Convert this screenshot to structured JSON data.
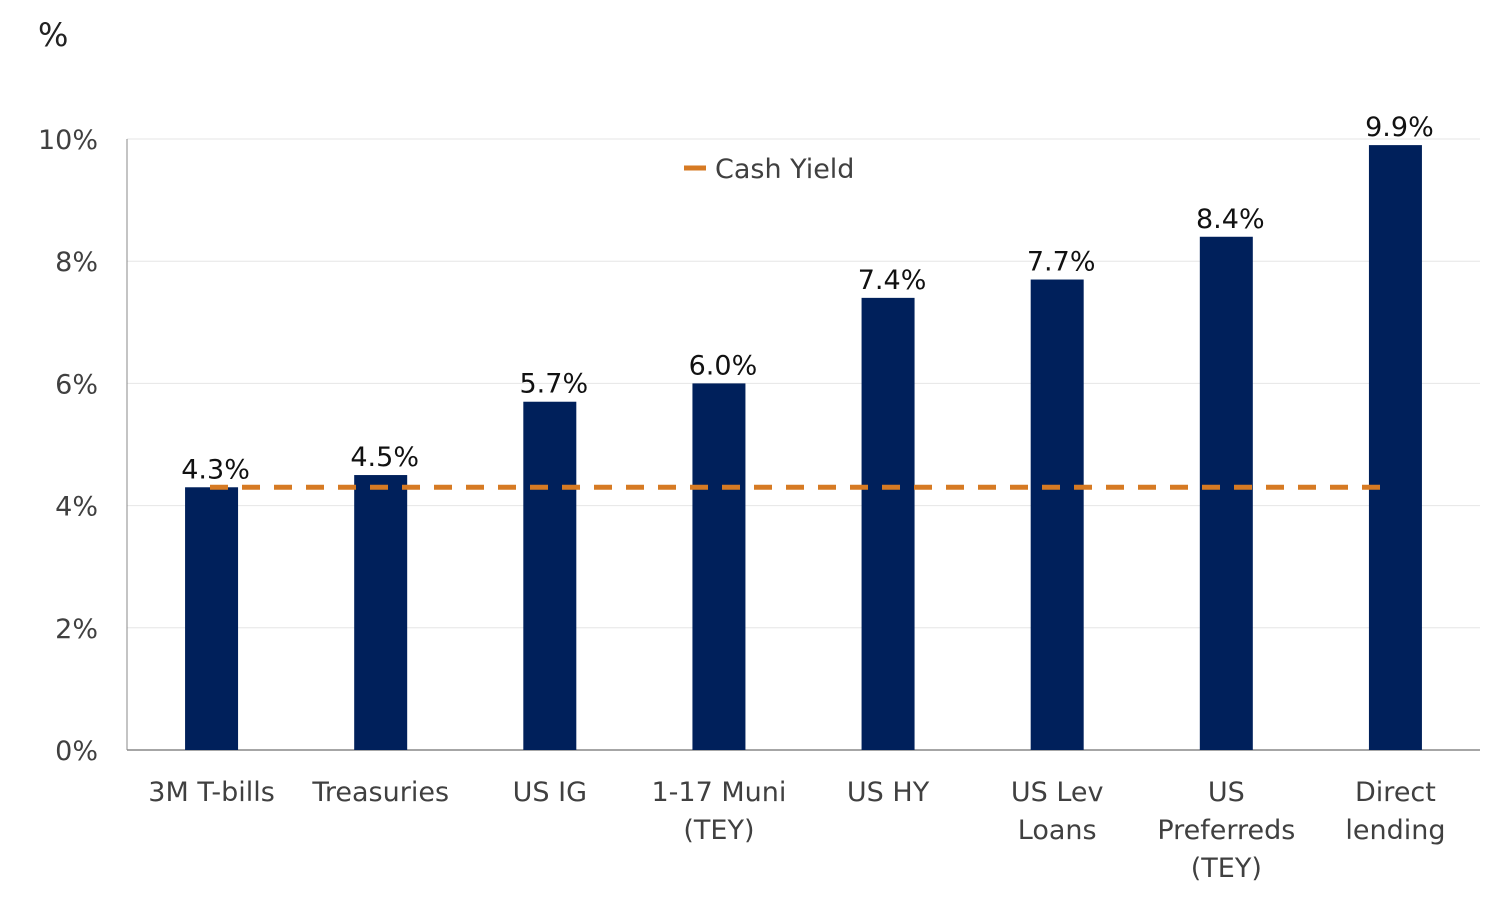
{
  "chart_data": {
    "type": "bar",
    "unit_label": "%",
    "categories": [
      [
        "3M T-bills"
      ],
      [
        "Treasuries"
      ],
      [
        "US IG"
      ],
      [
        "1-17 Muni",
        "(TEY)"
      ],
      [
        "US HY"
      ],
      [
        "US Lev",
        "Loans"
      ],
      [
        "US",
        "Preferreds",
        "(TEY)"
      ],
      [
        "Direct",
        "lending"
      ]
    ],
    "values": [
      4.3,
      4.5,
      5.7,
      6.0,
      7.4,
      7.7,
      8.4,
      9.9
    ],
    "data_labels": [
      "4.3%",
      "4.5%",
      "5.7%",
      "6.0%",
      "7.4%",
      "7.7%",
      "8.4%",
      "9.9%"
    ],
    "reference_line": {
      "name": "Cash Yield",
      "value": 4.3,
      "style": "dashed"
    },
    "legend": {
      "entries": [
        "Cash Yield"
      ],
      "placement": "top-center"
    },
    "ylim": [
      0,
      10
    ],
    "yticks": [
      0,
      2,
      4,
      6,
      8,
      10
    ],
    "ytick_labels": [
      "0%",
      "2%",
      "4%",
      "6%",
      "8%",
      "10%"
    ],
    "grid": true,
    "colors": {
      "bar": "#00205b",
      "line": "#d67a23",
      "grid": "#e6e6e6",
      "axis": "#888888",
      "text": "#404040"
    }
  }
}
